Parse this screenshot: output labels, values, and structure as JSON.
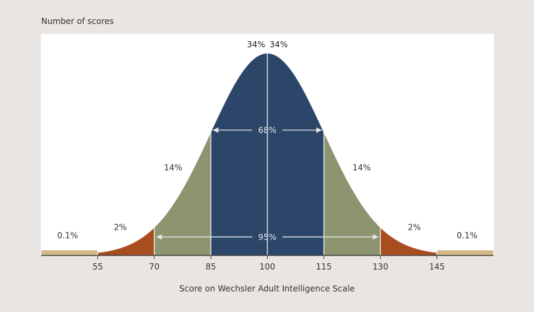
{
  "chart_data": {
    "type": "area",
    "title": "",
    "ylabel": "Number of scores",
    "xlabel": "Score on Wechsler Adult Intelligence Scale",
    "xlim": [
      40,
      160
    ],
    "x_ticks": [
      55,
      70,
      85,
      100,
      115,
      130,
      145
    ],
    "mean": 100,
    "sd": 15,
    "grid": true,
    "colors": {
      "background": "#e9e5e2",
      "plot_background": "#ffffff",
      "grid": "#ffffff",
      "band_within_1sd": "#2c4669",
      "band_1_to_2sd": "#8c9470",
      "band_2_to_3sd": "#a84d1f",
      "band_beyond_3sd": "#d4b987",
      "text": "#333333",
      "annotation": "#e6e6e6"
    },
    "bands": [
      {
        "from": 40,
        "to": 55,
        "label": "0.1%",
        "label_x": 47,
        "label_y_frac": 0.083
      },
      {
        "from": 55,
        "to": 70,
        "label": "2%",
        "label_x": 61,
        "label_y_frac": 0.125
      },
      {
        "from": 70,
        "to": 85,
        "label": "14%",
        "label_x": 75,
        "label_y_frac": 0.42
      },
      {
        "from": 85,
        "to": 100,
        "label": "34%",
        "label_x": 97,
        "label_y_frac": 1.03
      },
      {
        "from": 100,
        "to": 115,
        "label": "34%",
        "label_x": 103,
        "label_y_frac": 1.03
      },
      {
        "from": 115,
        "to": 130,
        "label": "14%",
        "label_x": 125,
        "label_y_frac": 0.42
      },
      {
        "from": 130,
        "to": 145,
        "label": "2%",
        "label_x": 139,
        "label_y_frac": 0.125
      },
      {
        "from": 145,
        "to": 160,
        "label": "0.1%",
        "label_x": 153,
        "label_y_frac": 0.083
      }
    ],
    "ranges": [
      {
        "from": 85,
        "to": 115,
        "label": "68%"
      },
      {
        "from": 70,
        "to": 130,
        "label": "95%"
      }
    ]
  }
}
